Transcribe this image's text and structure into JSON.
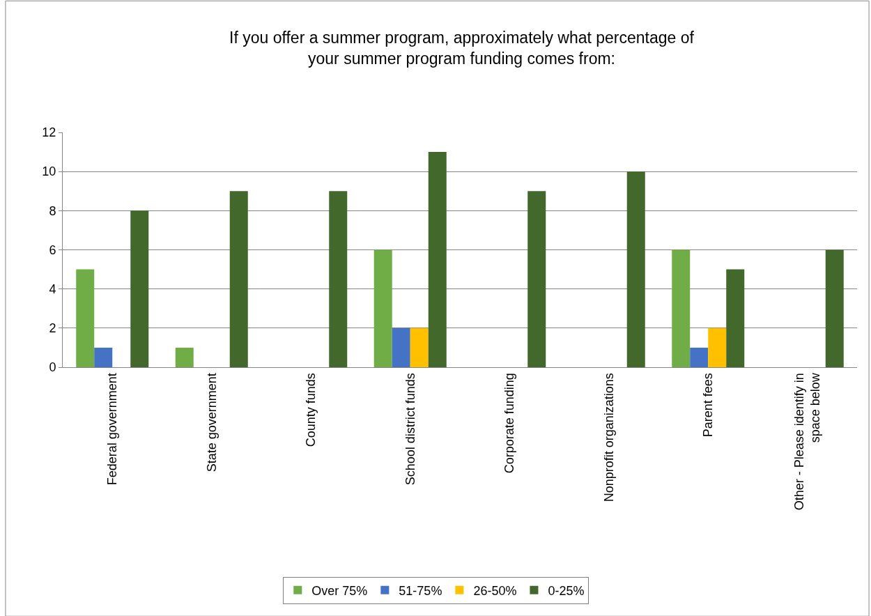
{
  "chart_data": {
    "type": "bar",
    "title": "If you offer a summer program, approximately what percentage of your summer program funding comes from:",
    "categories": [
      "Federal government",
      "State government",
      "County funds",
      "School district funds",
      "Corporate funding",
      "Nonprofit organizations",
      "Parent fees",
      "Other - Please identify in space below"
    ],
    "series": [
      {
        "name": "Over 75%",
        "color": "#70ad47",
        "values": [
          5,
          1,
          0,
          6,
          0,
          0,
          6,
          0
        ]
      },
      {
        "name": "51-75%",
        "color": "#4472c4",
        "values": [
          1,
          0,
          0,
          2,
          0,
          0,
          1,
          0
        ]
      },
      {
        "name": "26-50%",
        "color": "#ffc000",
        "values": [
          0,
          0,
          0,
          2,
          0,
          0,
          2,
          0
        ]
      },
      {
        "name": "0-25%",
        "color": "#43682b",
        "values": [
          8,
          9,
          9,
          11,
          9,
          10,
          5,
          6
        ]
      }
    ],
    "ylim": [
      0,
      12
    ],
    "yticks": [
      0,
      2,
      4,
      6,
      8,
      10,
      12
    ],
    "grid": "y",
    "legend": "bottom"
  }
}
